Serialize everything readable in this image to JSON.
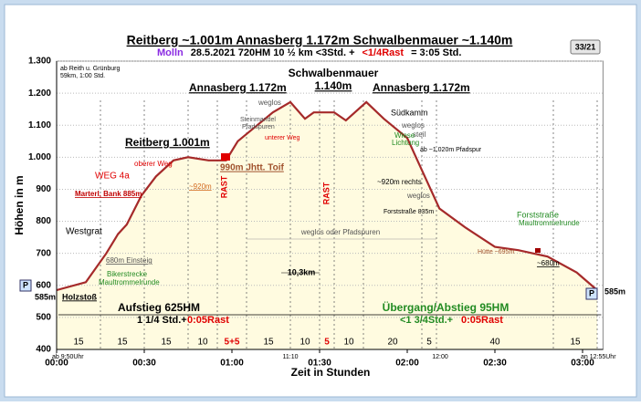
{
  "chart_data": {
    "type": "line",
    "title": "Reitberg ~1.001m Annasberg 1.172m Schwalbenmauer ~1.140m",
    "subtitle_parts": [
      {
        "text": "Molln",
        "color": "#8a2be2"
      },
      {
        "text": "28.5.2021   720HM   10 ½ km    <3Std. +",
        "color": "#000000"
      },
      {
        "text": "<1/4Rast",
        "color": "#e00000"
      },
      {
        "text": "= 3:05 Std.",
        "color": "#000000"
      }
    ],
    "badge": "33/21",
    "ylabel": "Höhen in m",
    "xlabel": "Zeit in Stunden",
    "x": [
      0,
      10,
      17,
      21,
      24,
      29,
      34,
      40,
      45,
      52,
      58,
      62,
      70,
      74,
      80,
      85,
      88,
      95,
      99,
      106,
      112,
      120,
      124,
      128,
      131,
      140,
      150,
      158,
      168,
      178,
      185
    ],
    "series": [
      {
        "color": "#a52a2a",
        "values": [
          585,
          610,
          700,
          760,
          790,
          880,
          940,
          990,
          1000,
          990,
          990,
          1050,
          1110,
          1140,
          1172,
          1120,
          1140,
          1140,
          1115,
          1172,
          1120,
          1060,
          980,
          900,
          840,
          780,
          720,
          710,
          690,
          640,
          585
        ]
      }
    ],
    "fill_color": "#fffbe0",
    "xlim": [
      0,
      187
    ],
    "ylim": [
      400,
      1300
    ],
    "xticks": [
      {
        "value": 0,
        "label": "00:00"
      },
      {
        "value": 30,
        "label": "00:30"
      },
      {
        "value": 60,
        "label": "01:00"
      },
      {
        "value": 90,
        "label": "01:30"
      },
      {
        "value": 120,
        "label": "02:00"
      },
      {
        "value": 150,
        "label": "02:30"
      },
      {
        "value": 180,
        "label": "03:00"
      }
    ],
    "yticks": [
      400,
      500,
      600,
      700,
      800,
      900,
      {
        "value": 1000,
        "label": "1.000"
      },
      {
        "value": 1100,
        "label": "1.100"
      },
      {
        "value": 1200,
        "label": "1.200"
      },
      {
        "value": 1300,
        "label": "1.300"
      }
    ],
    "grid": true,
    "segments": {
      "values": [
        15,
        15,
        15,
        10,
        10,
        15,
        10,
        5,
        10,
        20,
        5,
        40,
        15
      ],
      "value_labels": [
        "15",
        "15",
        "15",
        "10",
        "5+5",
        "15",
        "10",
        "5",
        "10",
        "20",
        "5",
        "40",
        "15"
      ],
      "colors": [
        "#000000",
        "#000000",
        "#000000",
        "#000000",
        "#e00000",
        "#000000",
        "#000000",
        "#e00000",
        "#000000",
        "#000000",
        "#000000",
        "#000000",
        "#000000"
      ]
    },
    "annotations": [
      {
        "text": "ab Reith u. Grünburg",
        "color": "#000000"
      },
      {
        "text": "59km, 1:00 Std.",
        "color": "#000000"
      },
      {
        "text": "Reitberg 1.001m",
        "color": "#000000"
      },
      {
        "text": "Annasberg 1.172m",
        "color": "#000000"
      },
      {
        "text": "Schwalbenmauer",
        "color": "#000000"
      },
      {
        "text": "1.140m",
        "color": "#000000"
      },
      {
        "text": "Annasberg 1.172m",
        "color": "#000000"
      },
      {
        "text": "WEG 4a",
        "color": "#e00000"
      },
      {
        "text": "Marterl, Bank 885m",
        "color": "#c00000"
      },
      {
        "text": "oberer Weg",
        "color": "#e00000"
      },
      {
        "text": "~920m",
        "color": "#d2691e"
      },
      {
        "text": "990m Jhtt. Toif",
        "color": "#a0522d"
      },
      {
        "text": "RAST",
        "color": "#e00000"
      },
      {
        "text": "RAST",
        "color": "#e00000"
      },
      {
        "text": "Westgrat",
        "color": "#000000"
      },
      {
        "text": "680m Einsteig",
        "color": "#555555"
      },
      {
        "text": "Bikerstrecke",
        "color": "#228b22"
      },
      {
        "text": "Maultrommelrunde",
        "color": "#228b22"
      },
      {
        "text": "585m",
        "color": "#000000"
      },
      {
        "text": "Holzstoß",
        "color": "#000000"
      },
      {
        "text": "weglos",
        "color": "#555555"
      },
      {
        "text": "Steinmandel",
        "color": "#555555"
      },
      {
        "text": "Pfadspuren",
        "color": "#555555"
      },
      {
        "text": "unterer Weg",
        "color": "#e00000"
      },
      {
        "text": "Südkamm",
        "color": "#000000"
      },
      {
        "text": "weglos",
        "color": "#555555"
      },
      {
        "text": "steil",
        "color": "#555555"
      },
      {
        "text": "Wiese",
        "color": "#228b22"
      },
      {
        "text": "Lichtung",
        "color": "#228b22"
      },
      {
        "text": "ab ~1.020m Pfadspur",
        "color": "#000000"
      },
      {
        "text": "~920m rechts",
        "color": "#000000"
      },
      {
        "text": "weglos",
        "color": "#555555"
      },
      {
        "text": "Forststraße 835m",
        "color": "#000000"
      },
      {
        "text": "Forststraße",
        "color": "#228b22"
      },
      {
        "text": "Maultrommelrunde",
        "color": "#228b22"
      },
      {
        "text": "Hütte ~695m",
        "color": "#a0522d"
      },
      {
        "text": "~680m",
        "color": "#000000"
      },
      {
        "text": "weglos oder Pfadspuren",
        "color": "#555555"
      },
      {
        "text": "10,3km",
        "color": "#000000"
      },
      {
        "text": "Aufstieg 625HM",
        "color": "#000000"
      },
      {
        "text": "1 1/4 Std.+",
        "color": "#000000"
      },
      {
        "text": "0:05Rast",
        "color": "#e00000"
      },
      {
        "text": "Übergang/Abstieg 95HM",
        "color": "#228b22"
      },
      {
        "text": "<1 3/4Std.+",
        "color": "#228b22"
      },
      {
        "text": "0:05Rast",
        "color": "#e00000"
      },
      {
        "text": "ab 9:50Uhr",
        "color": "#000000"
      },
      {
        "text": "11:10",
        "color": "#000000"
      },
      {
        "text": "12:00",
        "color": "#000000"
      },
      {
        "text": "an 12:55Uhr",
        "color": "#000000"
      },
      {
        "text": "585m",
        "color": "#000000"
      },
      {
        "text": "P",
        "color": "#000000"
      },
      {
        "text": "P",
        "color": "#000000"
      }
    ]
  }
}
